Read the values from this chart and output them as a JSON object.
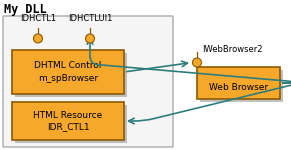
{
  "title": "My DLL",
  "bg_color": "#ffffff",
  "box_fill": "#f5a82a",
  "box_edge": "#8B5A00",
  "box_shadow": "#999999",
  "dll_border_color": "#aaaaaa",
  "dll_bg": "#f5f5f5",
  "pin_color": "#f5a82a",
  "pin_edge": "#8B5A00",
  "arrow_color": "#2e7d7d",
  "dhtml_label1": "DHTML Control",
  "dhtml_label2": "m_spBrowser",
  "html_label1": "HTML Resource",
  "html_label2": "IDR_CTL1",
  "wb_label": "Web Browser",
  "idhctl1_label": "IDHCTL1",
  "idhctlui1_label": "IDHCTLUI1",
  "iwb2_label": "IWebBrowser2",
  "font_size_title": 8.5,
  "font_size_box": 6.5,
  "font_size_pin": 6.0
}
